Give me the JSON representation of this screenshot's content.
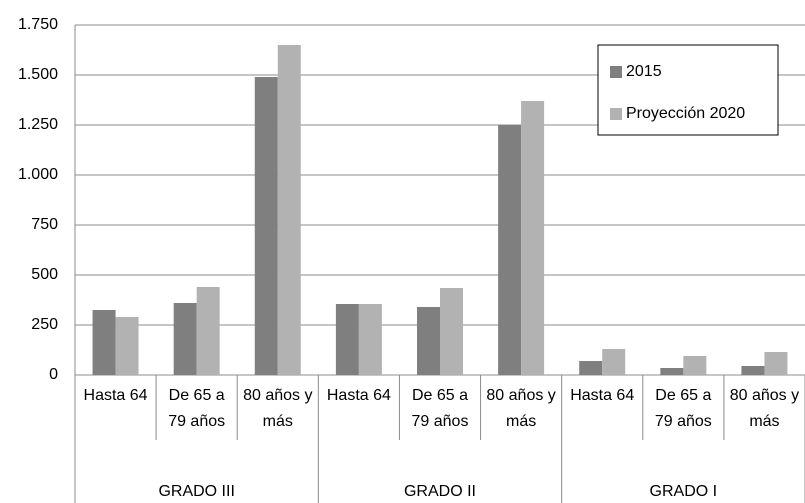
{
  "chart_data": {
    "type": "bar",
    "categories": [
      "Hasta 64",
      "De 65 a 79 años",
      "80 años y más",
      "Hasta 64",
      "De 65 a 79 años",
      "80 años y más",
      "Hasta 64",
      "De 65 a 79 años",
      "80 años y más"
    ],
    "groups": [
      "GRADO III",
      "GRADO II",
      "GRADO I"
    ],
    "series": [
      {
        "name": "2015",
        "color": "#7f7f7f",
        "values": [
          325,
          360,
          1490,
          355,
          340,
          1250,
          70,
          35,
          45
        ]
      },
      {
        "name": "Proyección 2020",
        "color": "#b2b2b2",
        "values": [
          290,
          440,
          1650,
          355,
          435,
          1370,
          130,
          95,
          115
        ]
      }
    ],
    "ylim": [
      0,
      1750
    ],
    "yticks": [
      0,
      250,
      500,
      750,
      {
        "value": 1000,
        "label": "1.000"
      },
      {
        "value": 1250,
        "label": "1.250"
      },
      {
        "value": 1500,
        "label": "1.500"
      },
      {
        "value": 1750,
        "label": "1.750"
      }
    ],
    "grid": true,
    "legend": "upper-right"
  }
}
